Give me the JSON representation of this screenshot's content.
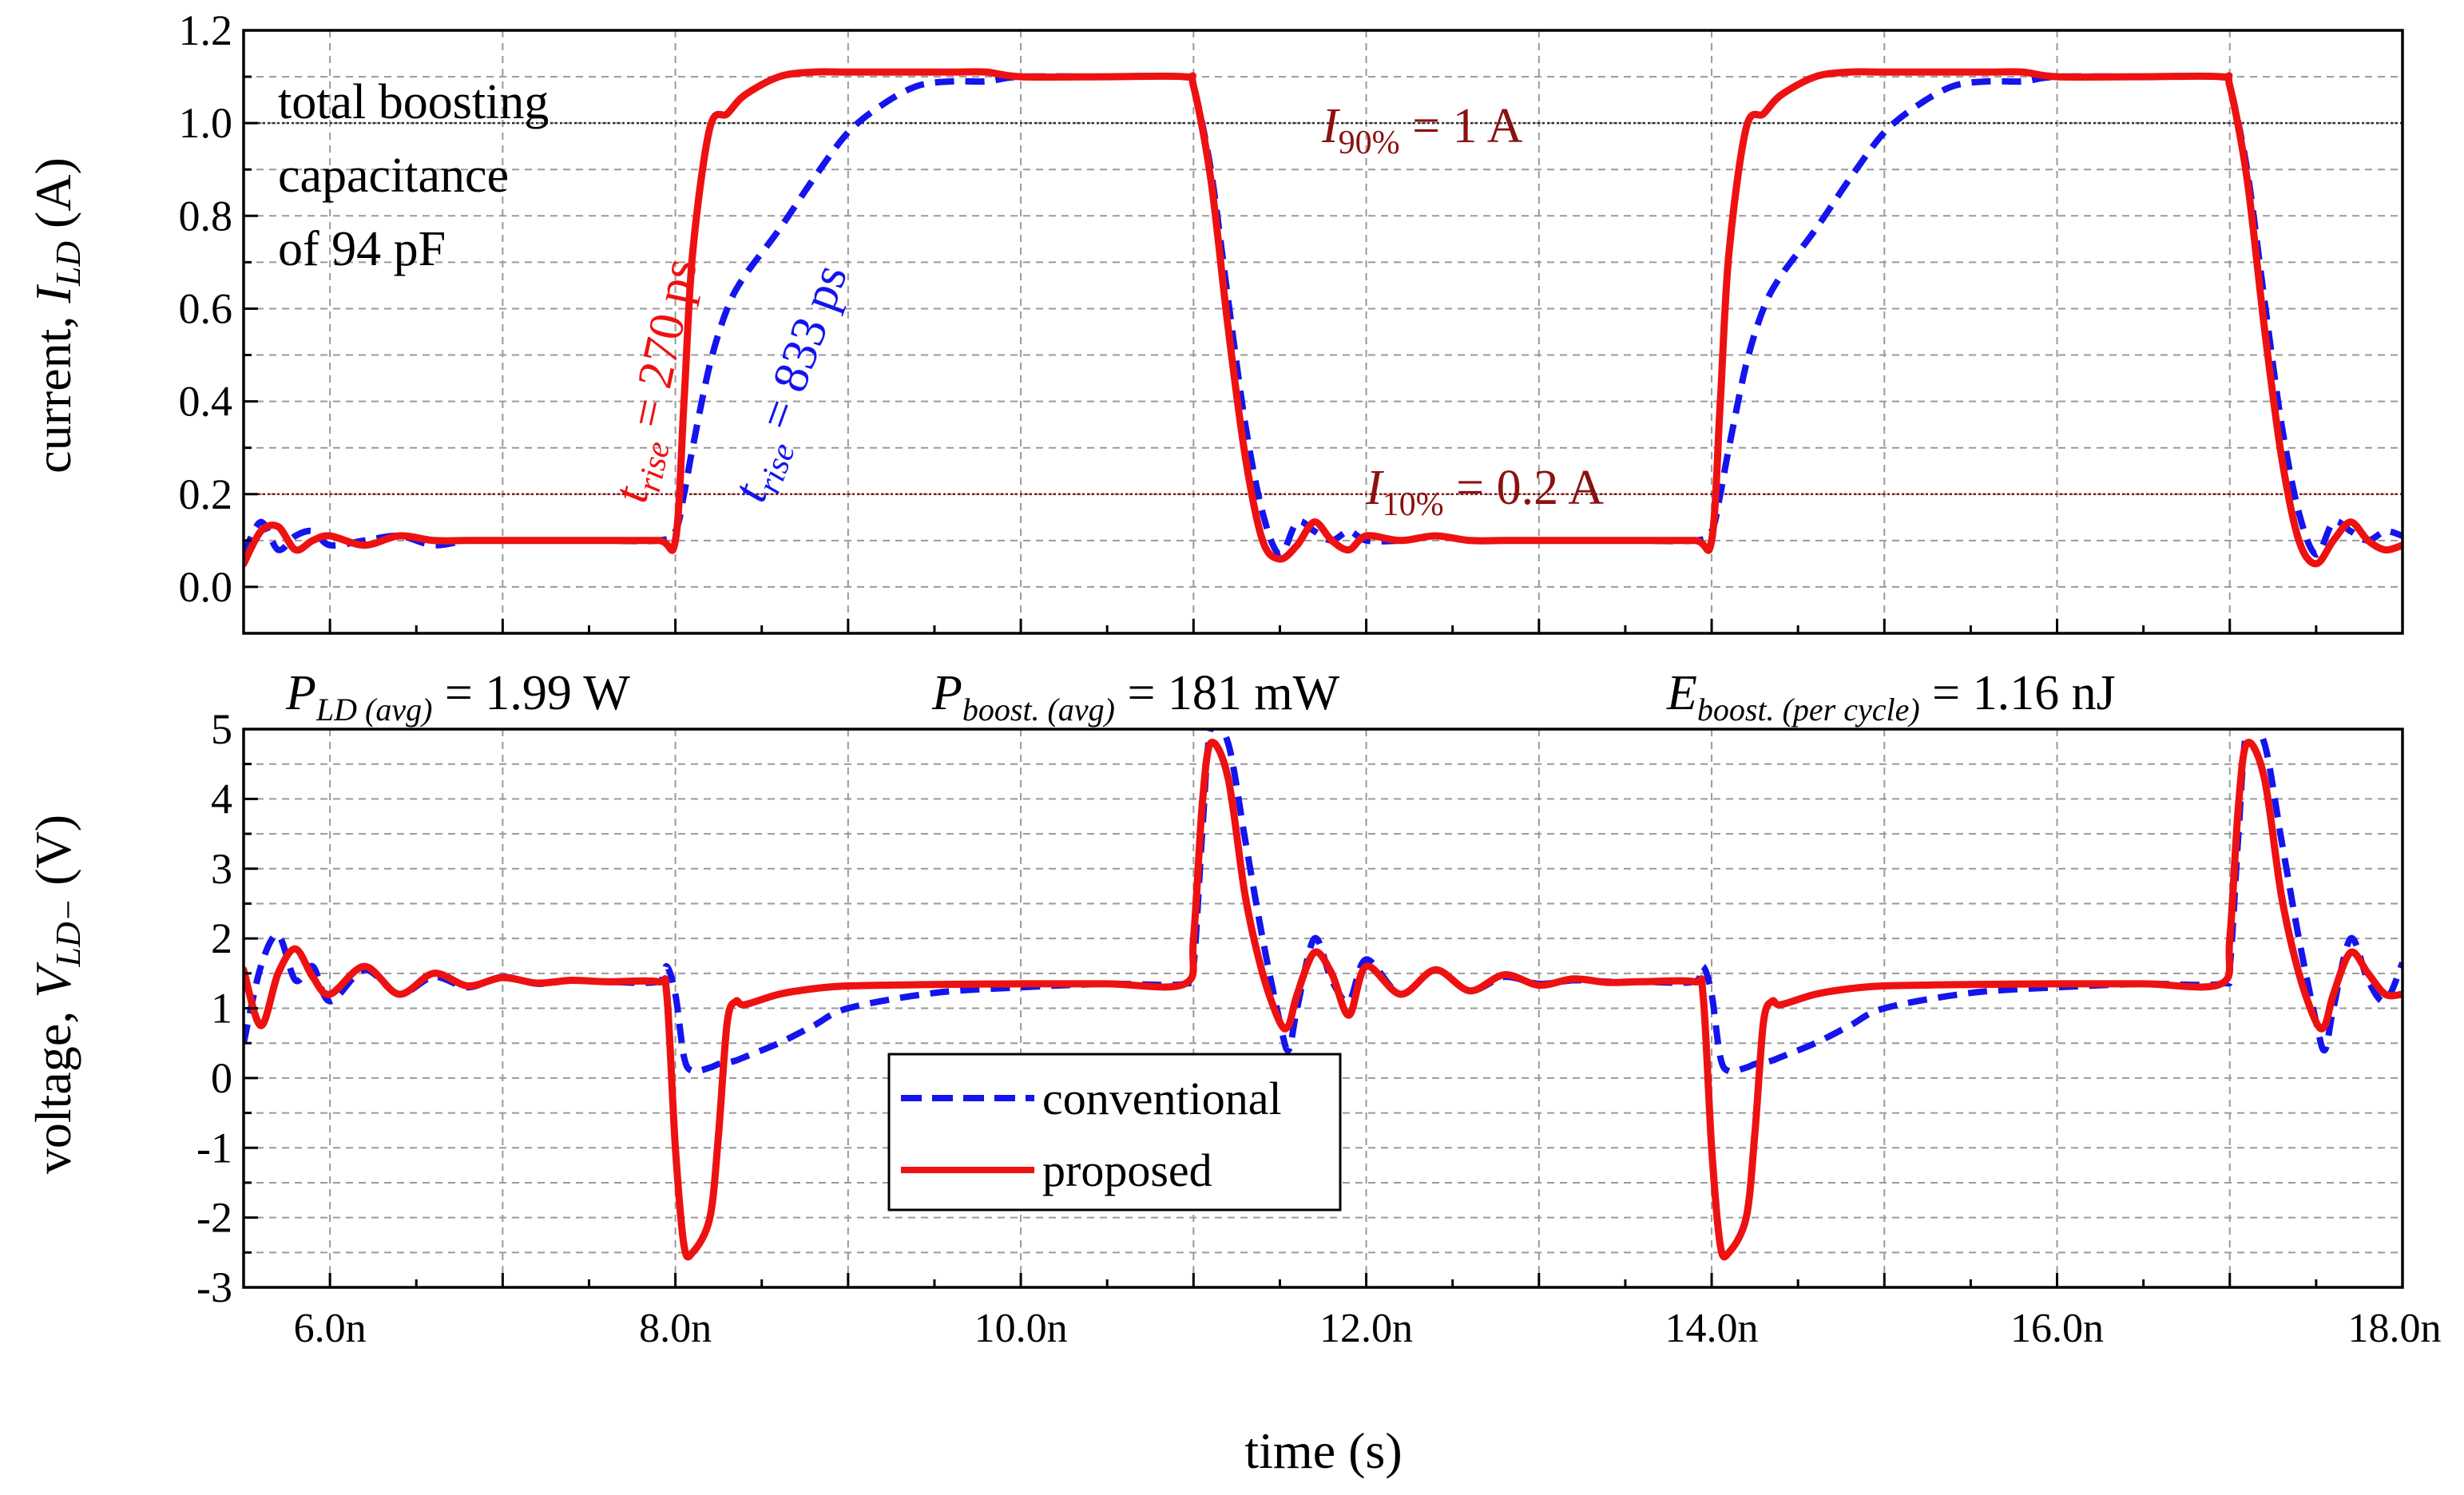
{
  "xaxis": {
    "label": "time (s)",
    "ticks": [
      6.0,
      8.0,
      10.0,
      12.0,
      14.0,
      16.0,
      18.0
    ],
    "tick_labels": [
      "6.0n",
      "8.0n",
      "10.0n",
      "12.0n",
      "14.0n",
      "16.0n",
      "18.0n"
    ],
    "range": [
      5.5,
      18.0
    ]
  },
  "colors": {
    "conventional": "#1414ee",
    "proposed": "#ee1111",
    "dark_red": "#8b1111",
    "grid": "#9a9a9a"
  },
  "chart_data": [
    {
      "type": "line",
      "ylabel_prefix": "current, ",
      "ylabel_sym": "I",
      "ylabel_sub": "LD",
      "ylabel_suffix": " (A)",
      "ylim": [
        -0.1,
        1.2
      ],
      "yticks": [
        0.0,
        0.2,
        0.4,
        0.6,
        0.8,
        1.0,
        1.2
      ],
      "ytick_labels": [
        "0.0",
        "0.2",
        "0.4",
        "0.6",
        "0.8",
        "1.0",
        "1.2"
      ],
      "x": [
        5.5,
        5.6,
        5.7,
        5.8,
        5.9,
        6.0,
        6.2,
        6.4,
        6.6,
        6.8,
        7.0,
        7.5,
        7.9,
        8.0,
        8.05,
        8.1,
        8.2,
        8.3,
        8.4,
        8.6,
        8.8,
        9.0,
        9.2,
        9.4,
        9.6,
        9.8,
        10.0,
        10.5,
        10.95,
        11.0,
        11.1,
        11.2,
        11.3,
        11.4,
        11.5,
        11.6,
        11.7,
        11.8,
        11.9,
        12.0,
        12.2,
        12.4,
        12.6,
        12.8,
        13.0,
        13.5,
        13.9,
        14.0,
        14.05,
        14.1,
        14.2,
        14.3,
        14.4,
        14.6,
        14.8,
        15.0,
        15.2,
        15.4,
        15.6,
        15.8,
        16.0,
        16.5,
        16.95,
        17.0,
        17.1,
        17.2,
        17.3,
        17.4,
        17.5,
        17.6,
        17.7,
        17.8,
        17.9,
        18.0
      ],
      "series": [
        {
          "name": "conventional",
          "values": [
            0.07,
            0.14,
            0.08,
            0.11,
            0.12,
            0.09,
            0.1,
            0.11,
            0.09,
            0.1,
            0.1,
            0.1,
            0.1,
            0.12,
            0.2,
            0.3,
            0.48,
            0.6,
            0.67,
            0.77,
            0.88,
            0.98,
            1.04,
            1.08,
            1.09,
            1.09,
            1.1,
            1.1,
            1.1,
            1.08,
            0.9,
            0.62,
            0.35,
            0.16,
            0.07,
            0.14,
            0.12,
            0.1,
            0.12,
            0.1,
            0.1,
            0.11,
            0.1,
            0.1,
            0.1,
            0.1,
            0.1,
            0.12,
            0.2,
            0.3,
            0.48,
            0.6,
            0.67,
            0.77,
            0.88,
            0.98,
            1.04,
            1.08,
            1.09,
            1.09,
            1.1,
            1.1,
            1.1,
            1.08,
            0.9,
            0.62,
            0.35,
            0.16,
            0.07,
            0.14,
            0.12,
            0.1,
            0.12,
            0.11
          ]
        },
        {
          "name": "proposed",
          "values": [
            0.05,
            0.12,
            0.13,
            0.08,
            0.1,
            0.11,
            0.09,
            0.11,
            0.1,
            0.1,
            0.1,
            0.1,
            0.1,
            0.1,
            0.4,
            0.72,
            0.99,
            1.02,
            1.06,
            1.1,
            1.11,
            1.11,
            1.11,
            1.11,
            1.11,
            1.11,
            1.1,
            1.1,
            1.1,
            1.08,
            0.88,
            0.56,
            0.28,
            0.1,
            0.06,
            0.09,
            0.14,
            0.1,
            0.08,
            0.11,
            0.1,
            0.11,
            0.1,
            0.1,
            0.1,
            0.1,
            0.1,
            0.1,
            0.4,
            0.72,
            0.99,
            1.02,
            1.06,
            1.1,
            1.11,
            1.11,
            1.11,
            1.11,
            1.11,
            1.11,
            1.1,
            1.1,
            1.1,
            1.08,
            0.88,
            0.56,
            0.28,
            0.1,
            0.05,
            0.1,
            0.14,
            0.1,
            0.08,
            0.09
          ]
        }
      ],
      "reference_lines": [
        {
          "value": 1.0,
          "sym": "I",
          "sub": "90%",
          "rest": " = 1 A"
        },
        {
          "value": 0.2,
          "sym": "I",
          "sub": "10%",
          "rest": " = 0.2 A"
        }
      ],
      "annotations": {
        "capacitance": [
          "total boosting",
          "capacitance",
          "of 94 pF"
        ],
        "rise_proposed": {
          "sym": "t",
          "sub": "rise",
          "rest": " = 270 ps"
        },
        "rise_conventional": {
          "sym": "t",
          "sub": "rise",
          "rest": " = 833 ps"
        }
      }
    },
    {
      "type": "line",
      "ylabel_prefix": "voltage, ",
      "ylabel_sym": "V",
      "ylabel_sub": "LD−",
      "ylabel_suffix": " (V)",
      "ylim": [
        -3,
        5
      ],
      "yticks": [
        -3,
        -2,
        -1,
        0,
        1,
        2,
        3,
        4,
        5
      ],
      "ytick_labels": [
        "-3",
        "-2",
        "-1",
        "0",
        "1",
        "2",
        "3",
        "4",
        "5"
      ],
      "x": [
        5.5,
        5.6,
        5.7,
        5.8,
        5.9,
        6.0,
        6.2,
        6.4,
        6.6,
        6.8,
        7.0,
        7.2,
        7.4,
        7.6,
        7.9,
        7.95,
        8.0,
        8.05,
        8.1,
        8.2,
        8.25,
        8.3,
        8.35,
        8.4,
        8.6,
        8.8,
        9.0,
        9.5,
        10.0,
        10.5,
        10.95,
        11.0,
        11.05,
        11.1,
        11.2,
        11.3,
        11.4,
        11.5,
        11.55,
        11.6,
        11.7,
        11.8,
        11.9,
        12.0,
        12.2,
        12.4,
        12.6,
        12.8,
        13.0,
        13.2,
        13.4,
        13.6,
        13.9,
        13.95,
        14.0,
        14.05,
        14.1,
        14.2,
        14.25,
        14.3,
        14.35,
        14.4,
        14.6,
        14.8,
        15.0,
        15.5,
        16.0,
        16.5,
        16.95,
        17.0,
        17.05,
        17.1,
        17.2,
        17.3,
        17.4,
        17.5,
        17.55,
        17.6,
        17.7,
        17.8,
        17.9,
        18.0
      ],
      "series": [
        {
          "name": "conventional",
          "values": [
            0.5,
            1.6,
            2.05,
            1.4,
            1.6,
            1.1,
            1.55,
            1.2,
            1.45,
            1.3,
            1.45,
            1.35,
            1.4,
            1.38,
            1.38,
            1.6,
            1.2,
            0.3,
            0.1,
            0.15,
            0.2,
            0.22,
            0.25,
            0.3,
            0.5,
            0.75,
            1.0,
            1.22,
            1.3,
            1.35,
            1.35,
            1.6,
            3.5,
            5.0,
            4.8,
            3.4,
            2.0,
            0.8,
            0.4,
            1.0,
            2.0,
            1.4,
            1.1,
            1.7,
            1.2,
            1.55,
            1.25,
            1.45,
            1.35,
            1.4,
            1.38,
            1.38,
            1.38,
            1.6,
            1.2,
            0.3,
            0.1,
            0.15,
            0.2,
            0.22,
            0.25,
            0.3,
            0.5,
            0.75,
            1.0,
            1.22,
            1.3,
            1.35,
            1.35,
            1.6,
            3.5,
            5.0,
            4.8,
            3.4,
            2.0,
            0.8,
            0.4,
            1.0,
            2.0,
            1.4,
            1.1,
            1.65
          ]
        },
        {
          "name": "proposed",
          "values": [
            1.55,
            0.75,
            1.5,
            1.85,
            1.45,
            1.2,
            1.6,
            1.2,
            1.5,
            1.32,
            1.44,
            1.36,
            1.4,
            1.38,
            1.38,
            1.2,
            -1.0,
            -2.4,
            -2.5,
            -2.0,
            -0.8,
            0.8,
            1.1,
            1.05,
            1.2,
            1.28,
            1.32,
            1.34,
            1.35,
            1.35,
            1.35,
            2.0,
            3.9,
            4.8,
            4.3,
            2.6,
            1.5,
            0.8,
            0.75,
            1.2,
            1.8,
            1.5,
            0.9,
            1.6,
            1.2,
            1.55,
            1.25,
            1.48,
            1.33,
            1.42,
            1.37,
            1.38,
            1.38,
            1.2,
            -1.0,
            -2.4,
            -2.5,
            -2.0,
            -0.8,
            0.8,
            1.1,
            1.05,
            1.2,
            1.28,
            1.32,
            1.34,
            1.35,
            1.35,
            1.35,
            2.0,
            3.9,
            4.8,
            4.3,
            2.6,
            1.5,
            0.8,
            0.75,
            1.2,
            1.8,
            1.5,
            1.2,
            1.2
          ]
        }
      ],
      "metrics": [
        {
          "sym": "P",
          "sub": "LD (avg)",
          "rest": " = 1.99 W"
        },
        {
          "sym": "P",
          "sub": "boost. (avg)",
          "rest": " = 181 mW"
        },
        {
          "sym": "E",
          "sub": "boost. (per cycle)",
          "rest": " = 1.16 nJ"
        }
      ],
      "legend": {
        "placement": "bottom-center",
        "entries": [
          {
            "series": "conventional",
            "label": "conventional"
          },
          {
            "series": "proposed",
            "label": "proposed"
          }
        ]
      }
    }
  ]
}
